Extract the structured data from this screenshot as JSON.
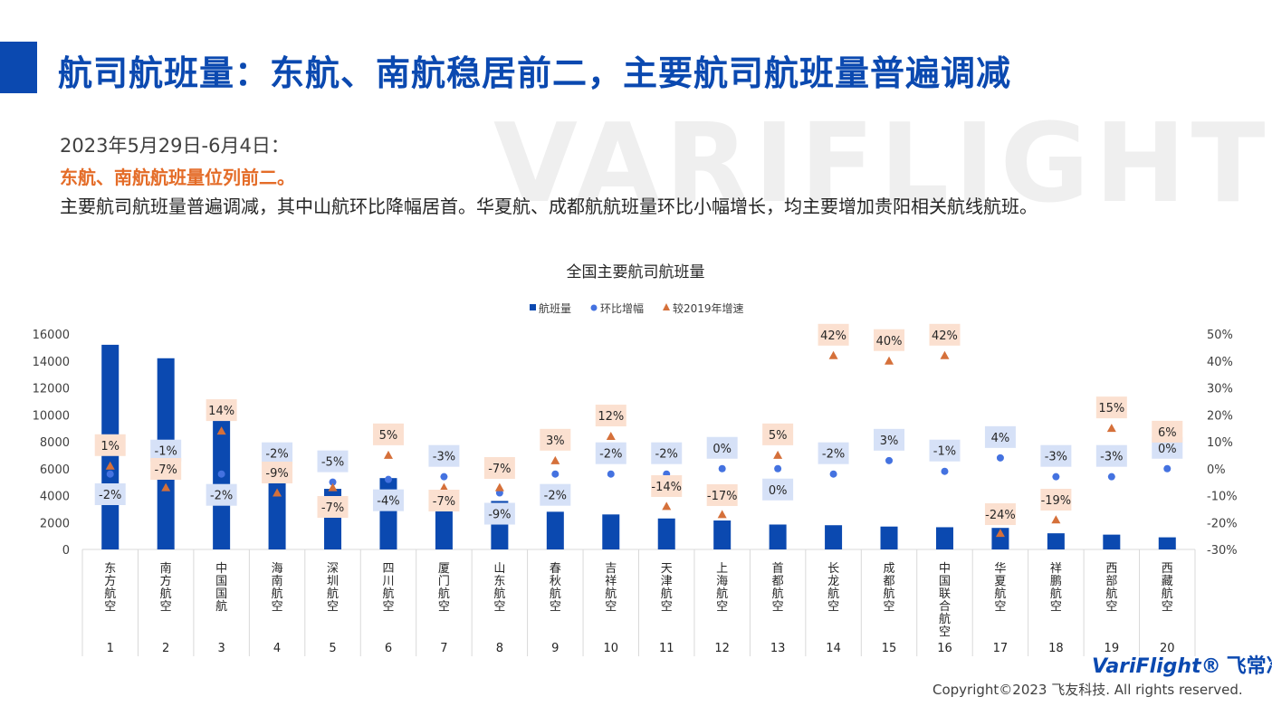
{
  "header": {
    "title": "航司航班量：东航、南航稳居前二，主要航司航班量普遍调减",
    "watermark": "VARIFLIGHT"
  },
  "summary": {
    "date_range": "2023年5月29日-6月4日：",
    "highlight": "东航、南航航班量位列前二。",
    "description": "主要航司航班量普遍调减，其中山航环比降幅居首。华夏航、成都航航班量环比小幅增长，均主要增加贵阳相关航线航班。"
  },
  "footer": {
    "logo": "VariFlight®",
    "logo_cn": "飞常准",
    "copyright": "Copyright©2023 飞友科技. All rights reserved."
  },
  "colors": {
    "bar": "#0b49b0",
    "wow_point": "#4472e0",
    "vs2019_point": "#d5703a",
    "wow_label_bg": "#d6e1f7",
    "vs2019_label_bg": "#fbe0d0",
    "accent": "#0b49b0"
  },
  "chart_data": {
    "type": "bar",
    "title": "全国主要航司航班量",
    "legend_position": "top",
    "categories": [
      "东方航空",
      "南方航空",
      "中国国航",
      "海南航空",
      "深圳航空",
      "四川航空",
      "厦门航空",
      "山东航空",
      "春秋航空",
      "吉祥航空",
      "天津航空",
      "上海航空",
      "首都航空",
      "长龙航空",
      "成都航空",
      "中国联合航空",
      "华夏航空",
      "祥鹏航空",
      "西部航空",
      "西藏航空"
    ],
    "ranks": [
      "1",
      "2",
      "3",
      "4",
      "5",
      "6",
      "7",
      "8",
      "9",
      "10",
      "11",
      "12",
      "13",
      "14",
      "15",
      "16",
      "17",
      "18",
      "19",
      "20"
    ],
    "y_left": {
      "min": 0,
      "max": 16000,
      "ticks": [
        "0",
        "2000",
        "4000",
        "6000",
        "8000",
        "10000",
        "12000",
        "14000",
        "16000"
      ]
    },
    "y_right": {
      "min": -30,
      "max": 50,
      "ticks": [
        "-30%",
        "-20%",
        "-10%",
        "0%",
        "10%",
        "20%",
        "30%",
        "40%",
        "50%"
      ]
    },
    "series": [
      {
        "name": "航班量",
        "kind": "bar",
        "values": [
          15200,
          14200,
          9600,
          5600,
          4500,
          5300,
          4400,
          3600,
          2800,
          2600,
          2300,
          2150,
          1850,
          1800,
          1700,
          1650,
          1600,
          1200,
          1100,
          900
        ]
      },
      {
        "name": "环比增幅",
        "kind": "point",
        "values": [
          -2,
          -1,
          -2,
          -2,
          -5,
          -4,
          -3,
          -9,
          -2,
          -2,
          -2,
          0,
          0,
          -2,
          3,
          -1,
          4,
          -3,
          -3,
          0
        ],
        "labels": [
          "-2%",
          "-1%",
          "-2%",
          "-2%",
          "-5%",
          "-4%",
          "-3%",
          "-9%",
          "-2%",
          "-2%",
          "-2%",
          "0%",
          "0%",
          "-2%",
          "3%",
          "-1%",
          "4%",
          "-3%",
          "-3%",
          "0%"
        ]
      },
      {
        "name": "较2019年增速",
        "kind": "point",
        "values": [
          1,
          -7,
          14,
          -9,
          -7,
          5,
          -7,
          -7,
          3,
          12,
          -14,
          -17,
          5,
          42,
          40,
          42,
          -24,
          -19,
          15,
          6
        ],
        "labels": [
          "1%",
          "-7%",
          "14%",
          "-9%",
          "-7%",
          "5%",
          "-7%",
          "-7%",
          "3%",
          "12%",
          "-14%",
          "-17%",
          "5%",
          "42%",
          "40%",
          "42%",
          "-24%",
          "-19%",
          "15%",
          "6%"
        ]
      }
    ]
  }
}
